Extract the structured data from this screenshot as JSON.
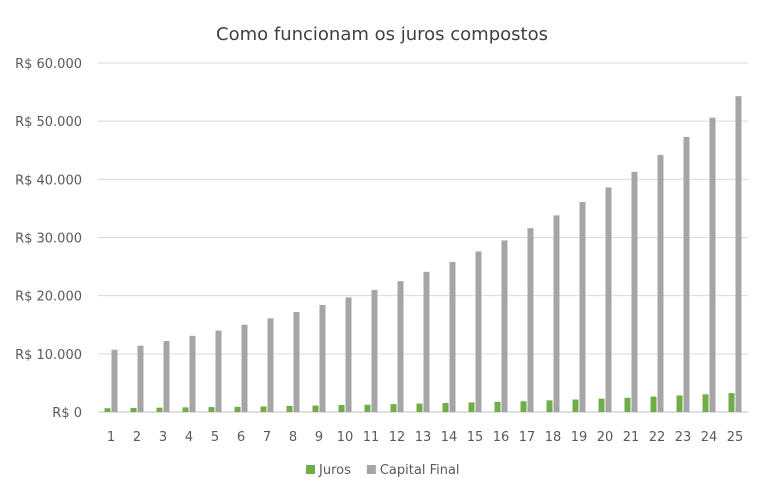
{
  "chart_data": {
    "type": "bar",
    "title": "Como funcionam os juros compostos",
    "xlabel": "",
    "ylabel": "",
    "ylim": [
      0,
      60000
    ],
    "yticks": [
      0,
      10000,
      20000,
      30000,
      40000,
      50000,
      60000
    ],
    "ytick_labels": [
      "R$ 0",
      "R$ 10.000",
      "R$ 20.000",
      "R$ 30.000",
      "R$ 40.000",
      "R$ 50.000",
      "R$ 60.000"
    ],
    "grid": true,
    "legend_position": "bottom",
    "categories": [
      "1",
      "2",
      "3",
      "4",
      "5",
      "6",
      "7",
      "8",
      "9",
      "10",
      "11",
      "12",
      "13",
      "14",
      "15",
      "16",
      "17",
      "18",
      "19",
      "20",
      "21",
      "22",
      "23",
      "24",
      "25"
    ],
    "series": [
      {
        "name": "Juros",
        "color": "#70ad47",
        "values": [
          650,
          700,
          750,
          800,
          850,
          900,
          950,
          1050,
          1100,
          1200,
          1250,
          1350,
          1450,
          1550,
          1650,
          1750,
          1850,
          2000,
          2150,
          2300,
          2450,
          2650,
          2850,
          3050,
          3250
        ]
      },
      {
        "name": "Capital Final",
        "color": "#a5a5a5",
        "values": [
          10700,
          11400,
          12200,
          13100,
          14000,
          15000,
          16100,
          17200,
          18400,
          19700,
          21000,
          22500,
          24100,
          25800,
          27600,
          29500,
          31600,
          33800,
          36100,
          38600,
          41300,
          44200,
          47300,
          50600,
          54300
        ]
      }
    ]
  }
}
